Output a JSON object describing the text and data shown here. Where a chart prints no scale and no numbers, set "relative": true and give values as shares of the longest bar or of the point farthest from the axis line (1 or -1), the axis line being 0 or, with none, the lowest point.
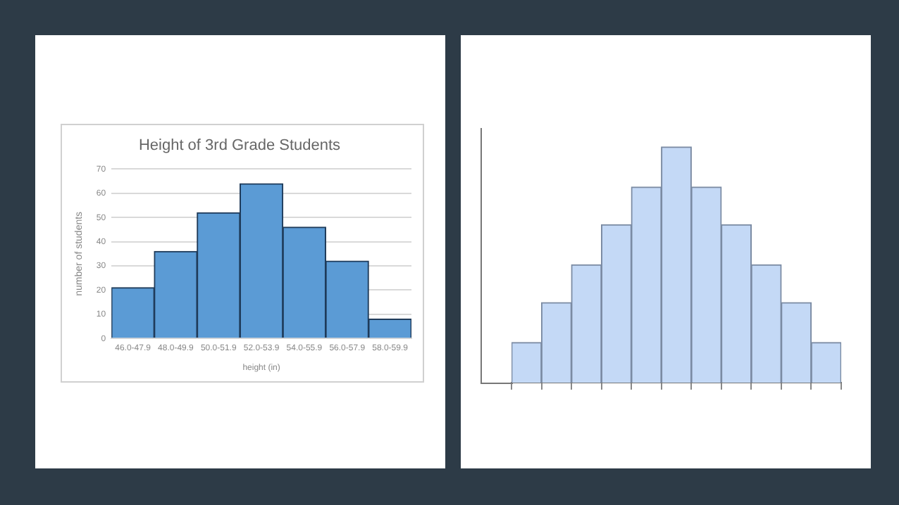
{
  "chart_data": [
    {
      "type": "bar",
      "title": "Height of 3rd Grade Students",
      "xlabel": "height (in)",
      "ylabel": "number of students",
      "categories": [
        "46.0-47.9",
        "48.0-49.9",
        "50.0-51.9",
        "52.0-53.9",
        "54.0-55.9",
        "56.0-57.9",
        "58.0-59.9"
      ],
      "values": [
        21,
        36,
        52,
        64,
        46,
        32,
        8
      ],
      "color": "#5b9bd5",
      "ylim": [
        0,
        70
      ],
      "yticks": [
        0,
        10,
        20,
        30,
        40,
        50,
        60,
        70
      ],
      "grid": "y"
    },
    {
      "type": "bar",
      "relative": true,
      "categories": [
        null,
        null,
        null,
        null,
        null,
        null,
        null,
        null,
        null,
        null,
        null
      ],
      "values": [
        0.17,
        0.34,
        0.5,
        0.67,
        0.83,
        1,
        0.83,
        0.67,
        0.5,
        0.34,
        0.17
      ],
      "color": "#c4d9f6",
      "tick_labels": false
    }
  ]
}
